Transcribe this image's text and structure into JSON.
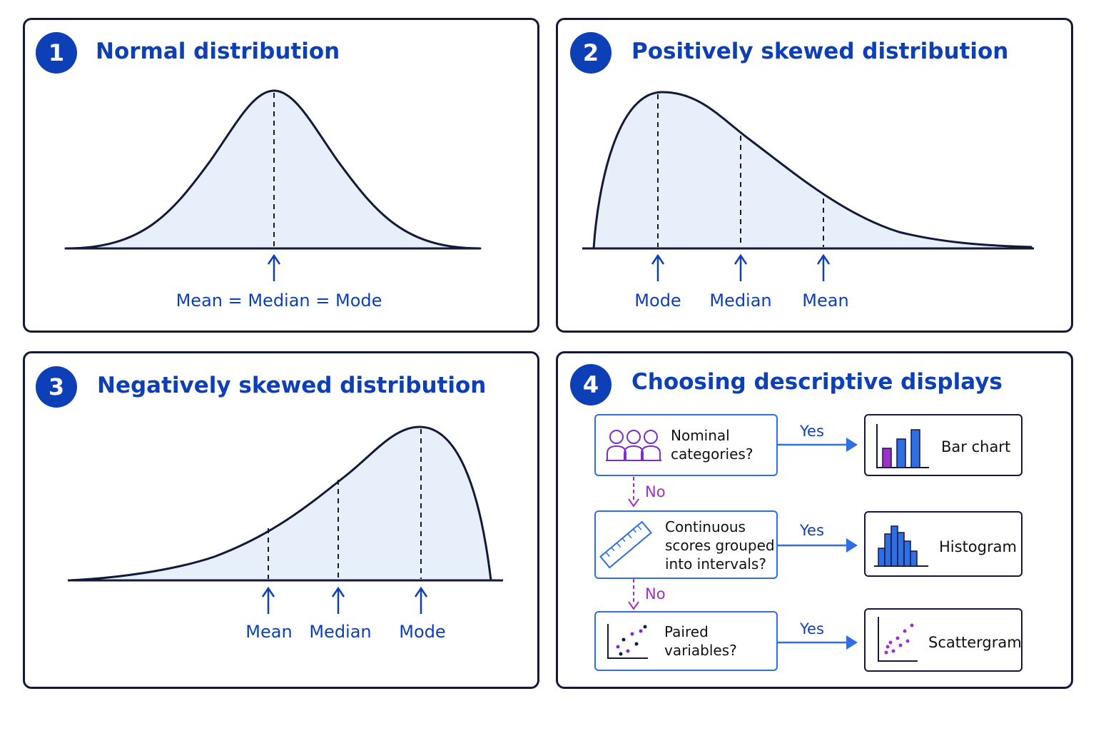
{
  "panels": [
    {
      "number": "1",
      "title": "Normal distribution",
      "label": "Mean = Median = Mode"
    },
    {
      "number": "2",
      "title": "Positively skewed distribution",
      "labels": [
        "Mode",
        "Median",
        "Mean"
      ]
    },
    {
      "number": "3",
      "title": "Negatively skewed distribution",
      "labels": [
        "Mean",
        "Median",
        "Mode"
      ]
    },
    {
      "number": "4",
      "title": "Choosing descriptive displays",
      "flow": [
        {
          "question": "Nominal categories?",
          "question_lines": [
            "Nominal",
            "categories?"
          ],
          "icon": "people-icon",
          "answer_yes": "Yes",
          "result": "Bar chart",
          "result_icon": "bar-chart-icon"
        },
        {
          "question": "Continuous scores grouped into intervals?",
          "question_lines": [
            "Continuous",
            "scores grouped",
            "into intervals?"
          ],
          "icon": "ruler-icon",
          "answer_yes": "Yes",
          "result": "Histogram",
          "result_icon": "histogram-icon"
        },
        {
          "question": "Paired variables?",
          "question_lines": [
            "Paired",
            "variables?"
          ],
          "icon": "scatter-icon",
          "answer_yes": "Yes",
          "result": "Scattergram",
          "result_icon": "scattergram-icon"
        }
      ],
      "answer_no": [
        "No",
        "No"
      ]
    }
  ],
  "colors": {
    "accent_blue": "#0d3fb7",
    "flow_blue": "#2f6ee3",
    "curve_fill": "#e6effa",
    "outline": "#14193a",
    "purple": "#a02fc9"
  }
}
